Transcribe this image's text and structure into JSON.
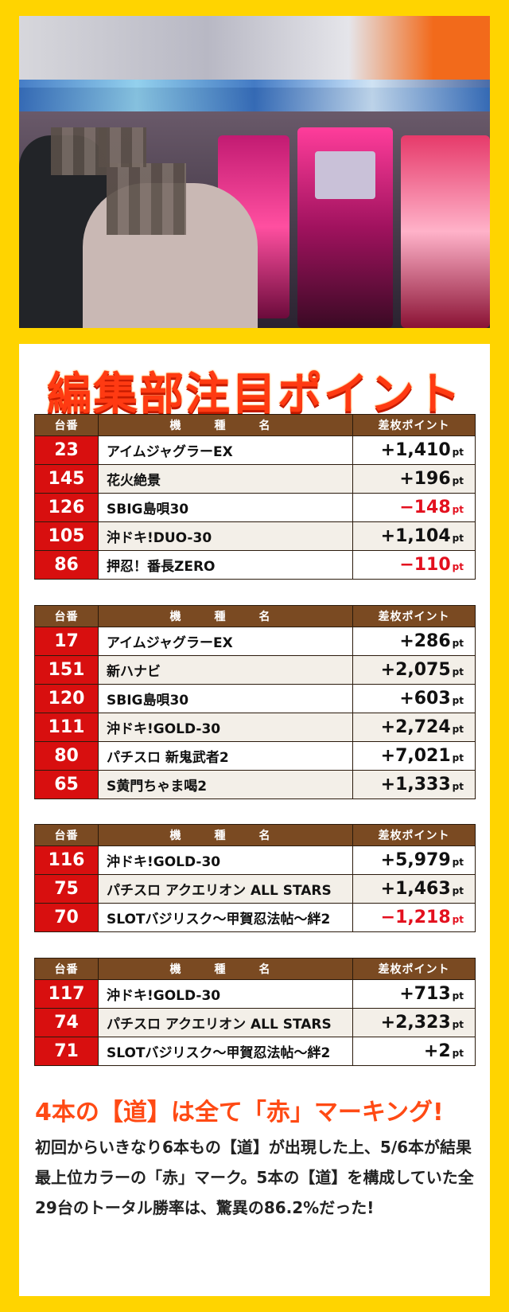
{
  "colors": {
    "background": "#ffd400",
    "accent": "#ff3a12",
    "header_brown": "#7a4a22",
    "number_red": "#d80f0f",
    "negative": "#e3101e"
  },
  "title": "編集部注目ポイント",
  "columns": {
    "no": "台番",
    "name": "機　種　名",
    "points": "差枚ポイント"
  },
  "unit": "pt",
  "tables": [
    {
      "rows": [
        {
          "no": "23",
          "name": "アイムジャグラーEX",
          "value": "+1,410",
          "negative": false
        },
        {
          "no": "145",
          "name": "花火絶景",
          "value": "+196",
          "negative": false
        },
        {
          "no": "126",
          "name": "SBIG島唄30",
          "value": "−148",
          "negative": true
        },
        {
          "no": "105",
          "name": "沖ドキ!DUO-30",
          "value": "+1,104",
          "negative": false
        },
        {
          "no": "86",
          "name": "押忍！番長ZERO",
          "value": "−110",
          "negative": true
        }
      ]
    },
    {
      "rows": [
        {
          "no": "17",
          "name": "アイムジャグラーEX",
          "value": "+286",
          "negative": false
        },
        {
          "no": "151",
          "name": "新ハナビ",
          "value": "+2,075",
          "negative": false
        },
        {
          "no": "120",
          "name": "SBIG島唄30",
          "value": "+603",
          "negative": false
        },
        {
          "no": "111",
          "name": "沖ドキ!GOLD-30",
          "value": "+2,724",
          "negative": false
        },
        {
          "no": "80",
          "name": "パチスロ 新鬼武者2",
          "value": "+7,021",
          "negative": false
        },
        {
          "no": "65",
          "name": "S黄門ちゃま喝2",
          "value": "+1,333",
          "negative": false
        }
      ]
    },
    {
      "rows": [
        {
          "no": "116",
          "name": "沖ドキ!GOLD-30",
          "value": "+5,979",
          "negative": false
        },
        {
          "no": "75",
          "name": "パチスロ アクエリオン ALL STARS",
          "value": "+1,463",
          "negative": false
        },
        {
          "no": "70",
          "name": "SLOTバジリスク～甲賀忍法帖～絆2",
          "value": "−1,218",
          "negative": true
        }
      ]
    },
    {
      "rows": [
        {
          "no": "117",
          "name": "沖ドキ!GOLD-30",
          "value": "+713",
          "negative": false
        },
        {
          "no": "74",
          "name": "パチスロ アクエリオン ALL STARS",
          "value": "+2,323",
          "negative": false
        },
        {
          "no": "71",
          "name": "SLOTバジリスク～甲賀忍法帖～絆2",
          "value": "+2",
          "negative": false
        }
      ]
    }
  ],
  "headline": "4本の【道】は全て「赤」マーキング!",
  "body": "初回からいきなり6本もの【道】が出現した上、5/6本が結果最上位カラーの「赤」マーク。5本の【道】を構成していた全29台のトータル勝率は、驚異の86.2%だった!"
}
